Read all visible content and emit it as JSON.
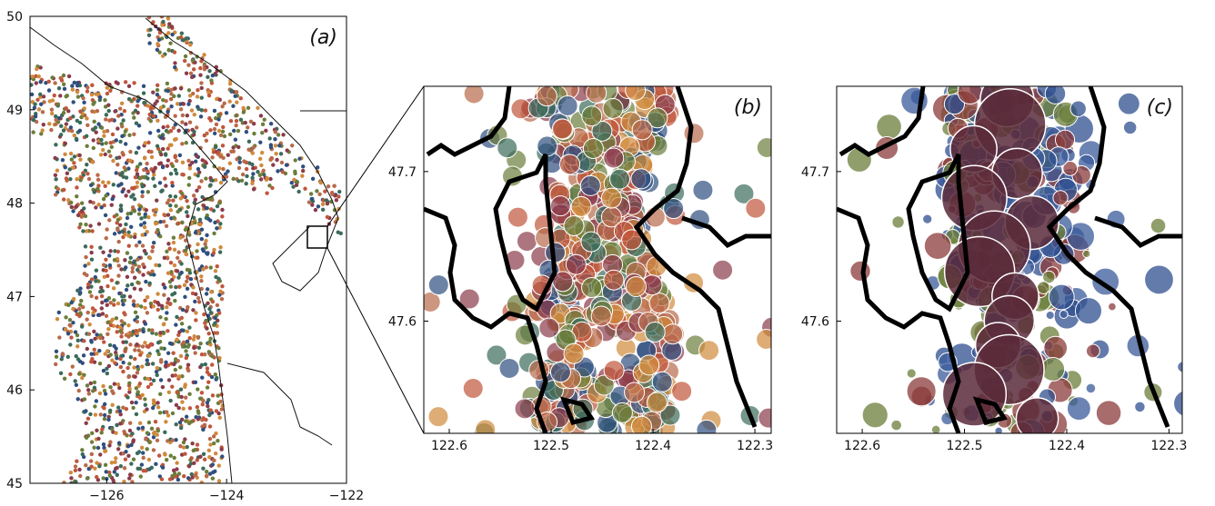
{
  "panels": [
    {
      "label": "(a)",
      "xlim": [
        -127.28,
        -122
      ],
      "ylim": [
        45,
        50
      ],
      "xticks": [
        {
          "value": -126,
          "label": "−126"
        },
        {
          "value": -124,
          "label": "−124"
        },
        {
          "value": -122,
          "label": "−122"
        }
      ],
      "yticks": [
        45,
        46,
        47,
        48,
        49,
        50
      ]
    },
    {
      "label": "(b)",
      "xlim": [
        122.625,
        122.284
      ],
      "ylim": [
        47.525,
        47.757
      ],
      "xticks": [
        122.6,
        122.5,
        122.4,
        122.3
      ],
      "yticks": [
        47.6,
        47.7
      ]
    },
    {
      "label": "(c)",
      "xlim": [
        122.625,
        122.287
      ],
      "ylim": [
        47.525,
        47.757
      ],
      "xticks": [
        122.6,
        122.5,
        122.4,
        122.3
      ],
      "yticks": [
        47.6,
        47.7
      ]
    }
  ]
}
